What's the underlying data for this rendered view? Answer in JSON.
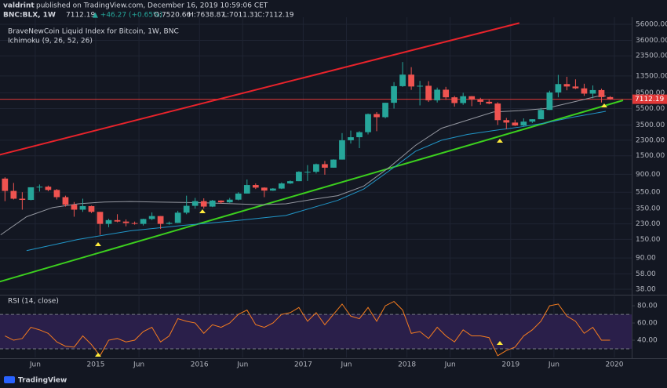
{
  "header": {
    "author": "valdrint",
    "published": "published on TradingView.com, December 16, 2019 10:59:06 CET",
    "symbol": "BNC:BLX, 1W",
    "last_price": 7112.19,
    "change": "▲ +46.27 (+0.65%)",
    "ohlc_header": [
      "O:7520.66",
      "H:7638.87",
      "L:7011.31",
      "C:7112.19"
    ],
    "footer": "TradingView"
  },
  "chart_data": [
    {
      "type": "candlestick",
      "title": "BraveNewCoin Liquid Index for Bitcoin, 1W, BNC",
      "indicator": "Ichimoku (9, 26, 52, 26)",
      "log_scale": true,
      "ylim": [
        33.4,
        68000
      ],
      "yticks": [
        {
          "value": 56000,
          "label": "56000.00"
        },
        {
          "value": 36000,
          "label": "36000.00"
        },
        {
          "value": 23500,
          "label": "23500.00"
        },
        {
          "value": 13500,
          "label": "13500.00"
        },
        {
          "value": 8500,
          "label": "8500.00"
        },
        {
          "value": 5500,
          "label": "5500.00"
        },
        {
          "value": 3500,
          "label": "3500.00"
        },
        {
          "value": 2300,
          "label": "2300.00"
        },
        {
          "value": 1500,
          "label": "1500.00"
        },
        {
          "value": 900,
          "label": "900.00"
        },
        {
          "value": 550,
          "label": "550.00"
        },
        {
          "value": 350,
          "label": "350.00"
        },
        {
          "value": 230,
          "label": "230.00"
        },
        {
          "value": 150,
          "label": "150.00"
        },
        {
          "value": 90,
          "label": "90.00"
        },
        {
          "value": 58,
          "label": "58.00"
        },
        {
          "value": 38,
          "label": "38.00"
        }
      ],
      "up_color": "#26a69a",
      "down_color": "#ef5350",
      "last_price_color": "#e03838",
      "x": [
        "2014-02",
        "2014-03",
        "2014-04",
        "2014-05",
        "2014-06",
        "2014-07",
        "2014-08",
        "2014-09",
        "2014-10",
        "2014-11",
        "2014-12",
        "2015-01",
        "2015-02",
        "2015-03",
        "2015-04",
        "2015-05",
        "2015-06",
        "2015-07",
        "2015-08",
        "2015-09",
        "2015-10",
        "2015-11",
        "2015-12",
        "2016-01",
        "2016-02",
        "2016-03",
        "2016-04",
        "2016-05",
        "2016-06",
        "2016-07",
        "2016-08",
        "2016-09",
        "2016-10",
        "2016-11",
        "2016-12",
        "2017-01",
        "2017-02",
        "2017-03",
        "2017-04",
        "2017-05",
        "2017-06",
        "2017-07",
        "2017-08",
        "2017-09",
        "2017-10",
        "2017-11",
        "2017-12",
        "2018-01",
        "2018-02",
        "2018-03",
        "2018-04",
        "2018-05",
        "2018-06",
        "2018-07",
        "2018-08",
        "2018-09",
        "2018-10",
        "2018-11",
        "2018-12",
        "2019-01",
        "2019-02",
        "2019-03",
        "2019-04",
        "2019-05",
        "2019-06",
        "2019-07",
        "2019-08",
        "2019-09",
        "2019-10",
        "2019-11",
        "2019-12"
      ],
      "open": [
        800,
        570,
        460,
        445,
        630,
        640,
        585,
        480,
        390,
        340,
        375,
        320,
        230,
        255,
        245,
        235,
        230,
        263,
        285,
        230,
        236,
        313,
        378,
        430,
        370,
        437,
        416,
        448,
        530,
        670,
        624,
        575,
        608,
        700,
        745,
        965,
        965,
        1190,
        1080,
        1350,
        2300,
        2500,
        2870,
        4730,
        4340,
        6450,
        10200,
        14000,
        10100,
        10300,
        6900,
        9250,
        7500,
        6400,
        7730,
        7030,
        6630,
        6320,
        4000,
        3740,
        3450,
        3840,
        4100,
        5300,
        8580,
        10800,
        10100,
        9600,
        8300,
        9150,
        7550
      ],
      "high": [
        830,
        710,
        550,
        630,
        680,
        660,
        600,
        500,
        420,
        460,
        380,
        320,
        265,
        300,
        260,
        245,
        265,
        315,
        285,
        245,
        330,
        500,
        470,
        465,
        445,
        440,
        470,
        550,
        780,
        700,
        630,
        615,
        720,
        760,
        980,
        1160,
        1210,
        1300,
        1360,
        2800,
        3000,
        2950,
        4800,
        5000,
        6450,
        11400,
        19800,
        17200,
        11800,
        11700,
        9800,
        10000,
        7800,
        8500,
        7760,
        7400,
        7000,
        6550,
        4250,
        4050,
        4200,
        4100,
        5600,
        9000,
        13900,
        13200,
        12300,
        10900,
        10400,
        9500,
        7750
      ],
      "low": [
        430,
        450,
        340,
        440,
        560,
        565,
        450,
        370,
        280,
        320,
        310,
        170,
        210,
        240,
        215,
        225,
        220,
        255,
        200,
        225,
        235,
        300,
        350,
        350,
        365,
        400,
        410,
        440,
        530,
        600,
        480,
        570,
        600,
        690,
        745,
        750,
        920,
        890,
        1080,
        1350,
        2100,
        1850,
        2700,
        2950,
        4200,
        5500,
        10000,
        9200,
        6000,
        6600,
        6500,
        7000,
        5800,
        6100,
        5880,
        6100,
        6200,
        3500,
        3130,
        3400,
        3350,
        3700,
        4100,
        5300,
        7500,
        9100,
        9400,
        7800,
        7300,
        6500,
        7011.31
      ],
      "close": [
        570,
        460,
        445,
        630,
        640,
        585,
        480,
        390,
        340,
        375,
        320,
        230,
        255,
        245,
        235,
        230,
        263,
        285,
        230,
        236,
        313,
        378,
        430,
        370,
        437,
        416,
        448,
        530,
        670,
        624,
        575,
        608,
        700,
        745,
        965,
        965,
        1190,
        1080,
        1350,
        2300,
        2500,
        2870,
        4730,
        4340,
        6450,
        10200,
        14000,
        10100,
        10300,
        6900,
        9250,
        7500,
        6400,
        7730,
        7030,
        6630,
        6320,
        4000,
        3740,
        3450,
        3840,
        4100,
        5300,
        8580,
        10800,
        10100,
        9600,
        8300,
        9150,
        7550,
        7112.19
      ],
      "overlays": [
        {
          "color": "#9598a1",
          "x": [
            "2014-02",
            "2014-05",
            "2014-08",
            "2014-11",
            "2015-02",
            "2015-05",
            "2015-08",
            "2015-11",
            "2016-02",
            "2016-05",
            "2016-08",
            "2016-11",
            "2017-02",
            "2017-05",
            "2017-08",
            "2017-11",
            "2018-02",
            "2018-05",
            "2018-08",
            "2018-11",
            "2019-02",
            "2019-05",
            "2019-08",
            "2019-11",
            "2019-12"
          ],
          "values": [
            170,
            280,
            360,
            400,
            420,
            425,
            420,
            415,
            410,
            400,
            390,
            400,
            450,
            500,
            650,
            1100,
            2000,
            3200,
            4000,
            5000,
            5200,
            5500,
            6500,
            7700,
            7800
          ]
        },
        {
          "color": "#2196c8",
          "x": [
            "2014-05",
            "2014-11",
            "2015-05",
            "2015-11",
            "2016-05",
            "2016-11",
            "2017-05",
            "2017-08",
            "2017-11",
            "2018-02",
            "2018-05",
            "2018-08",
            "2018-11",
            "2019-02",
            "2019-05",
            "2019-08",
            "2019-12"
          ],
          "values": [
            110,
            150,
            190,
            220,
            250,
            290,
            440,
            600,
            1000,
            1700,
            2300,
            2700,
            3000,
            3300,
            3700,
            4300,
            5100
          ]
        }
      ],
      "trendlines": [
        {
          "color": "#e8232b",
          "x": [
            "2014-01",
            "2019-02"
          ],
          "values": [
            1460,
            58000
          ]
        },
        {
          "color": "#3ccf1e",
          "x": [
            "2014-01",
            "2020-02"
          ],
          "values": [
            44,
            6900
          ]
        }
      ]
    },
    {
      "type": "line",
      "title": "RSI (14, close)",
      "color": "#f57c1f",
      "band_color": "#2a1f4a",
      "ylim": [
        20,
        91
      ],
      "bands": [
        30,
        70
      ],
      "yticks": [
        {
          "value": 80,
          "label": "80.00"
        },
        {
          "value": 60,
          "label": "60.00"
        },
        {
          "value": 40,
          "label": "40.00"
        }
      ],
      "xticks": [
        {
          "value": "2014-06",
          "label": "Jun"
        },
        {
          "value": "2015-01",
          "label": "2015"
        },
        {
          "value": "2015-06",
          "label": "Jun"
        },
        {
          "value": "2016-01",
          "label": "2016"
        },
        {
          "value": "2016-06",
          "label": "Jun"
        },
        {
          "value": "2017-01",
          "label": "2017"
        },
        {
          "value": "2017-06",
          "label": "Jun"
        },
        {
          "value": "2018-01",
          "label": "2018"
        },
        {
          "value": "2018-06",
          "label": "Jun"
        },
        {
          "value": "2019-01",
          "label": "2019"
        },
        {
          "value": "2019-06",
          "label": "Jun"
        },
        {
          "value": "2020-01",
          "label": "2020"
        }
      ],
      "values": [
        45,
        40,
        42,
        55,
        52,
        48,
        38,
        33,
        32,
        45,
        35,
        22,
        40,
        42,
        38,
        40,
        50,
        55,
        38,
        45,
        65,
        62,
        60,
        48,
        58,
        55,
        60,
        70,
        75,
        58,
        55,
        60,
        70,
        72,
        78,
        62,
        72,
        58,
        70,
        82,
        68,
        65,
        78,
        62,
        80,
        85,
        75,
        48,
        50,
        42,
        55,
        45,
        38,
        52,
        45,
        45,
        43,
        22,
        28,
        32,
        45,
        52,
        62,
        80,
        82,
        68,
        62,
        48,
        55,
        40,
        40
      ]
    }
  ]
}
